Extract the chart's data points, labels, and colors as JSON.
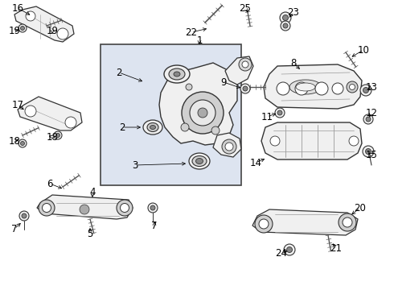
{
  "bg_color": "#ffffff",
  "box_fill": "#dde4f0",
  "box_edge": "#444444",
  "lc": "#333333",
  "tc": "#000000",
  "fc_part": "#f0f0f0",
  "fc_dark": "#d0d0d0"
}
